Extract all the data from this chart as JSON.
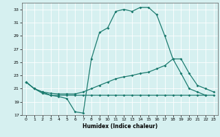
{
  "xlabel": "Humidex (Indice chaleur)",
  "bg_color": "#d6f0f0",
  "line_color": "#1a7a6e",
  "grid_color": "#ffffff",
  "xlim": [
    -0.5,
    23.5
  ],
  "ylim": [
    17,
    34
  ],
  "xticks": [
    0,
    1,
    2,
    3,
    4,
    5,
    6,
    7,
    8,
    9,
    10,
    11,
    12,
    13,
    14,
    15,
    16,
    17,
    18,
    19,
    20,
    21,
    22,
    23
  ],
  "yticks": [
    17,
    19,
    21,
    23,
    25,
    27,
    29,
    31,
    33
  ],
  "curve1_x": [
    0,
    1,
    2,
    3,
    4,
    5,
    6,
    7,
    8,
    9,
    10,
    11,
    12,
    13,
    14,
    15,
    16,
    17,
    18,
    19,
    20,
    21,
    22
  ],
  "curve1_y": [
    22.0,
    21.0,
    20.5,
    20.0,
    19.8,
    19.5,
    17.5,
    17.3,
    25.5,
    29.5,
    30.2,
    32.7,
    33.0,
    32.7,
    33.3,
    33.3,
    32.2,
    29.0,
    25.5,
    23.3,
    21.0,
    20.5,
    20.0
  ],
  "curve2_x": [
    0,
    1,
    2,
    3,
    4,
    5,
    6,
    7,
    8,
    9,
    10,
    11,
    12,
    13,
    14,
    15,
    16,
    17,
    18,
    19,
    20,
    21,
    22,
    23
  ],
  "curve2_y": [
    22.0,
    21.0,
    20.3,
    20.0,
    20.0,
    20.0,
    20.0,
    20.0,
    20.0,
    20.0,
    20.0,
    20.0,
    20.0,
    20.0,
    20.0,
    20.0,
    20.0,
    20.0,
    20.0,
    20.0,
    20.0,
    20.0,
    20.0,
    20.0
  ],
  "curve3_x": [
    0,
    1,
    2,
    3,
    4,
    5,
    6,
    7,
    8,
    9,
    10,
    11,
    12,
    13,
    14,
    15,
    16,
    17,
    18,
    19,
    20,
    21,
    22,
    23
  ],
  "curve3_y": [
    22.0,
    21.0,
    20.5,
    20.3,
    20.2,
    20.2,
    20.2,
    20.5,
    21.0,
    21.5,
    22.0,
    22.5,
    22.8,
    23.0,
    23.3,
    23.5,
    24.0,
    24.5,
    25.5,
    25.5,
    23.3,
    21.5,
    21.0,
    20.5
  ]
}
